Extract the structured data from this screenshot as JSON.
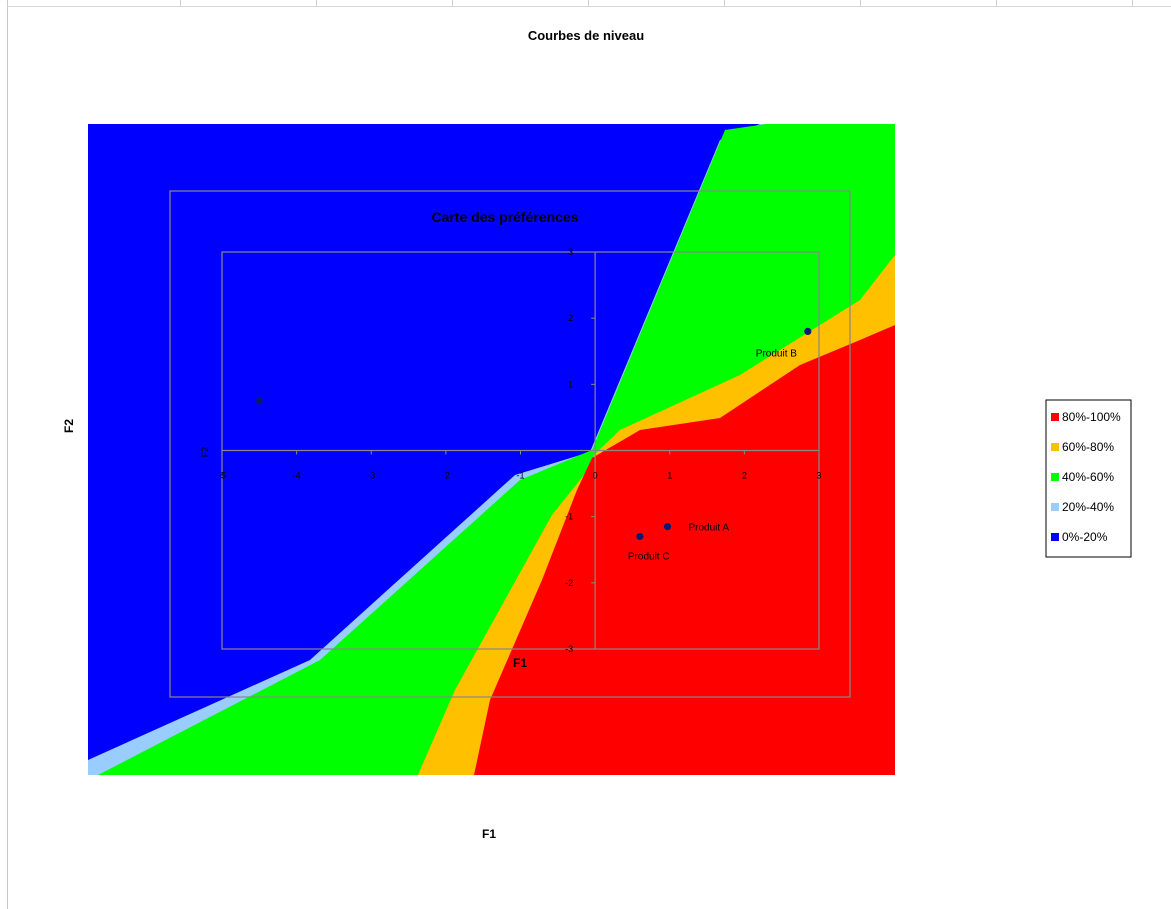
{
  "chart_data": [
    {
      "type": "heatmap",
      "title": "Courbes de niveau",
      "xlabel": "F1",
      "ylabel": "F2",
      "bands": [
        {
          "label": "80%-100%",
          "color": "#ff0000"
        },
        {
          "label": "60%-80%",
          "color": "#ffc000"
        },
        {
          "label": "40%-60%",
          "color": "#00ff00"
        },
        {
          "label": "20%-40%",
          "color": "#99ccff"
        },
        {
          "label": "0%-20%",
          "color": "#0000ff"
        }
      ],
      "legend_position": "right"
    },
    {
      "type": "scatter",
      "title": "Carte des préférences",
      "xlabel": "F1",
      "ylabel": "F2",
      "xlim": [
        -5,
        3
      ],
      "ylim": [
        -3,
        3
      ],
      "x_ticks": [
        -5,
        -4,
        -3,
        -2,
        -1,
        0,
        1,
        2,
        3
      ],
      "y_ticks": [
        -3,
        -2,
        -1,
        0,
        1,
        2,
        3
      ],
      "x_tick_labels": [
        "-5",
        "-4",
        "-3",
        "-2",
        "-1",
        "0",
        "1",
        "2",
        "3"
      ],
      "y_tick_labels": [
        "-3",
        "-2",
        "-1",
        "",
        "1",
        "2",
        "3"
      ],
      "points": [
        {
          "x": -4.5,
          "y": 0.75,
          "label": ""
        },
        {
          "x": 0.97,
          "y": -1.15,
          "label": "Produit A"
        },
        {
          "x": 2.85,
          "y": 1.8,
          "label": "Produit B"
        },
        {
          "x": 0.6,
          "y": -1.3,
          "label": "Produit C"
        }
      ],
      "marker_color": "#0a1a6e"
    }
  ]
}
